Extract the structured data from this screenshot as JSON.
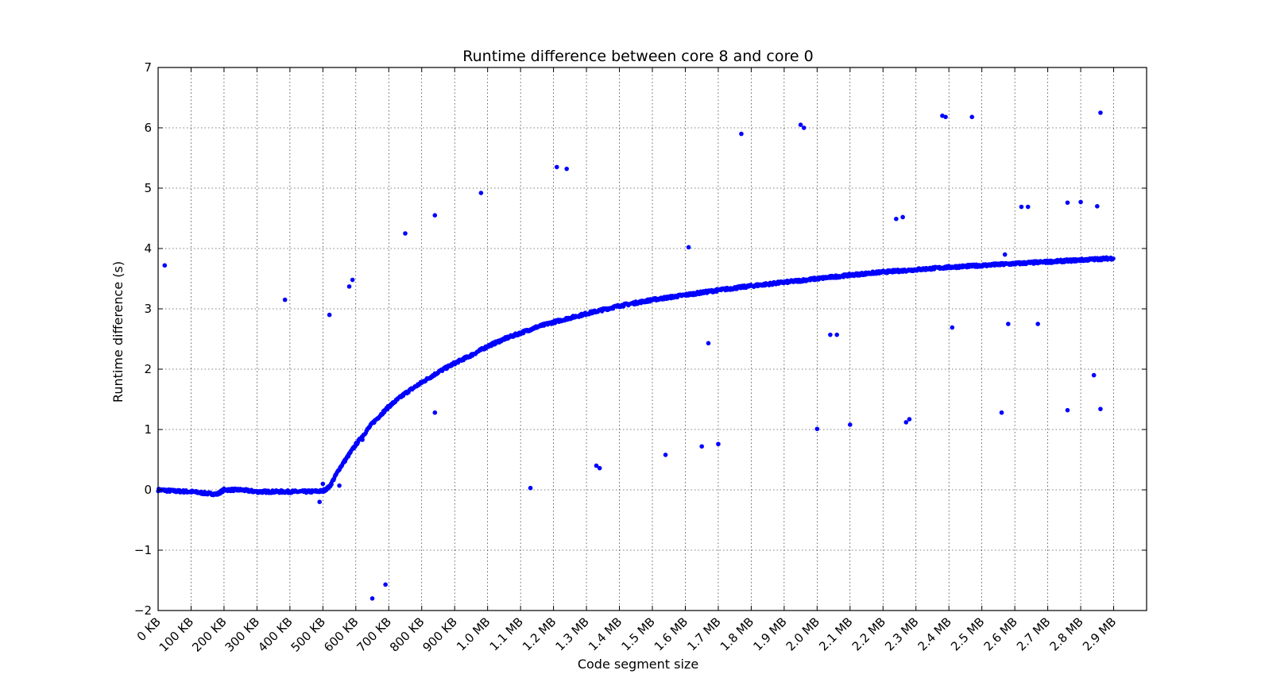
{
  "chart_data": {
    "type": "scatter",
    "title": "Runtime difference between core 8 and core 0",
    "xlabel": "Code segment size",
    "ylabel": "Runtime difference (s)",
    "x_units": "KB",
    "xlim": [
      0,
      3000
    ],
    "ylim": [
      -2,
      7
    ],
    "grid": true,
    "grid_style": "dotted",
    "marker_color": "#0000ff",
    "x_tick_values": [
      0,
      100,
      200,
      300,
      400,
      500,
      600,
      700,
      800,
      900,
      1000,
      1100,
      1200,
      1300,
      1400,
      1500,
      1600,
      1700,
      1800,
      1900,
      2000,
      2100,
      2200,
      2300,
      2400,
      2500,
      2600,
      2700,
      2800,
      2900
    ],
    "x_tick_labels": [
      "0 KB",
      "100 KB",
      "200 KB",
      "300 KB",
      "400 KB",
      "500 KB",
      "600 KB",
      "700 KB",
      "800 KB",
      "900 KB",
      "1.0 MB",
      "1.1 MB",
      "1.2 MB",
      "1.3 MB",
      "1.4 MB",
      "1.5 MB",
      "1.6 MB",
      "1.7 MB",
      "1.8 MB",
      "1.9 MB",
      "2.0 MB",
      "2.1 MB",
      "2.2 MB",
      "2.3 MB",
      "2.4 MB",
      "2.5 MB",
      "2.6 MB",
      "2.7 MB",
      "2.8 MB",
      "2.9 MB"
    ],
    "y_tick_values": [
      -2,
      -1,
      0,
      1,
      2,
      3,
      4,
      5,
      6,
      7
    ],
    "y_tick_labels": [
      "−2",
      "−1",
      "0",
      "1",
      "2",
      "3",
      "4",
      "5",
      "6",
      "7"
    ],
    "main_trend": {
      "x": [
        0,
        50,
        100,
        150,
        180,
        200,
        250,
        300,
        350,
        400,
        450,
        500,
        520,
        550,
        600,
        650,
        700,
        750,
        800,
        850,
        900,
        950,
        1000,
        1050,
        1100,
        1150,
        1200,
        1250,
        1300,
        1400,
        1500,
        1600,
        1700,
        1800,
        1900,
        2000,
        2100,
        2200,
        2300,
        2400,
        2500,
        2600,
        2700,
        2800,
        2900
      ],
      "y": [
        0.0,
        -0.02,
        -0.03,
        -0.06,
        -0.07,
        0.0,
        0.0,
        -0.03,
        -0.03,
        -0.03,
        -0.03,
        -0.02,
        0.05,
        0.35,
        0.75,
        1.1,
        1.38,
        1.6,
        1.78,
        1.95,
        2.1,
        2.23,
        2.38,
        2.5,
        2.6,
        2.7,
        2.78,
        2.85,
        2.92,
        3.05,
        3.15,
        3.23,
        3.31,
        3.38,
        3.44,
        3.5,
        3.56,
        3.61,
        3.65,
        3.69,
        3.72,
        3.75,
        3.78,
        3.81,
        3.84
      ]
    },
    "outliers": {
      "x": [
        20,
        385,
        490,
        500,
        520,
        550,
        580,
        590,
        620,
        650,
        690,
        750,
        840,
        840,
        980,
        1130,
        1210,
        1240,
        1330,
        1340,
        1540,
        1610,
        1650,
        1670,
        1700,
        1770,
        1950,
        1960,
        2000,
        2040,
        2060,
        2100,
        2240,
        2260,
        2270,
        2280,
        2380,
        2390,
        2410,
        2470,
        2560,
        2570,
        2580,
        2620,
        2640,
        2670,
        2760,
        2760,
        2800,
        2840,
        2850,
        2860,
        2860
      ],
      "y": [
        3.72,
        3.15,
        -0.2,
        0.1,
        2.9,
        0.07,
        3.37,
        3.48,
        0.83,
        -1.8,
        -1.57,
        4.25,
        4.55,
        1.28,
        4.92,
        0.03,
        5.35,
        5.32,
        0.4,
        0.36,
        0.58,
        4.02,
        0.72,
        2.43,
        0.76,
        5.9,
        6.05,
        6.0,
        1.01,
        2.57,
        2.57,
        1.08,
        4.49,
        4.52,
        1.12,
        1.17,
        6.2,
        6.18,
        2.69,
        6.18,
        1.28,
        3.9,
        2.75,
        4.69,
        4.69,
        2.75,
        4.76,
        1.32,
        4.77,
        1.9,
        4.7,
        6.25,
        1.34
      ]
    }
  }
}
